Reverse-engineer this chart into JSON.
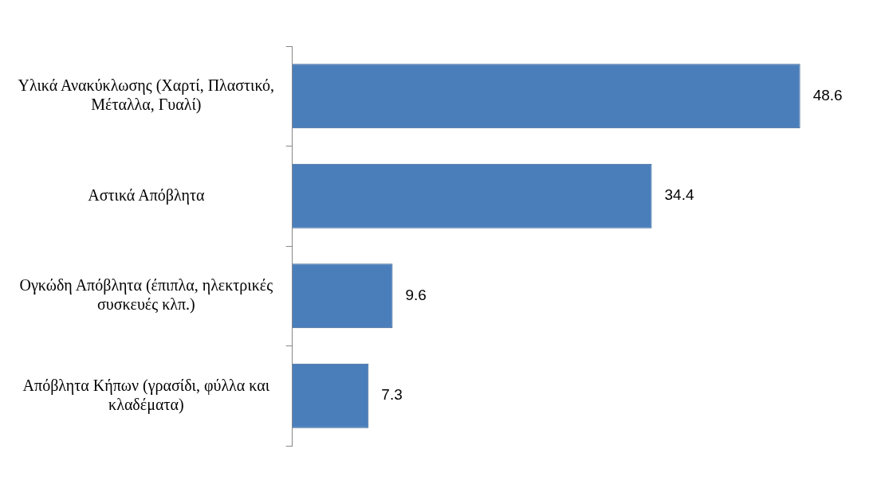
{
  "chart_data": {
    "type": "bar",
    "orientation": "horizontal",
    "data_labels": true,
    "legend": false,
    "categories": [
      "Υλικά Ανακύκλωσης (Χαρτί, Πλαστικό, Μέταλλα, Γυαλί)",
      "Αστικά Απόβλητα",
      "Ογκώδη Απόβλητα (έπιπλα, ηλεκτρικές συσκευές κλπ.)",
      "Απόβλητα Κήπων (γρασίδι, φύλλα και κλαδέματα)"
    ],
    "values": [
      48.6,
      34.4,
      9.6,
      7.3
    ],
    "color": "#4a7ebb"
  }
}
